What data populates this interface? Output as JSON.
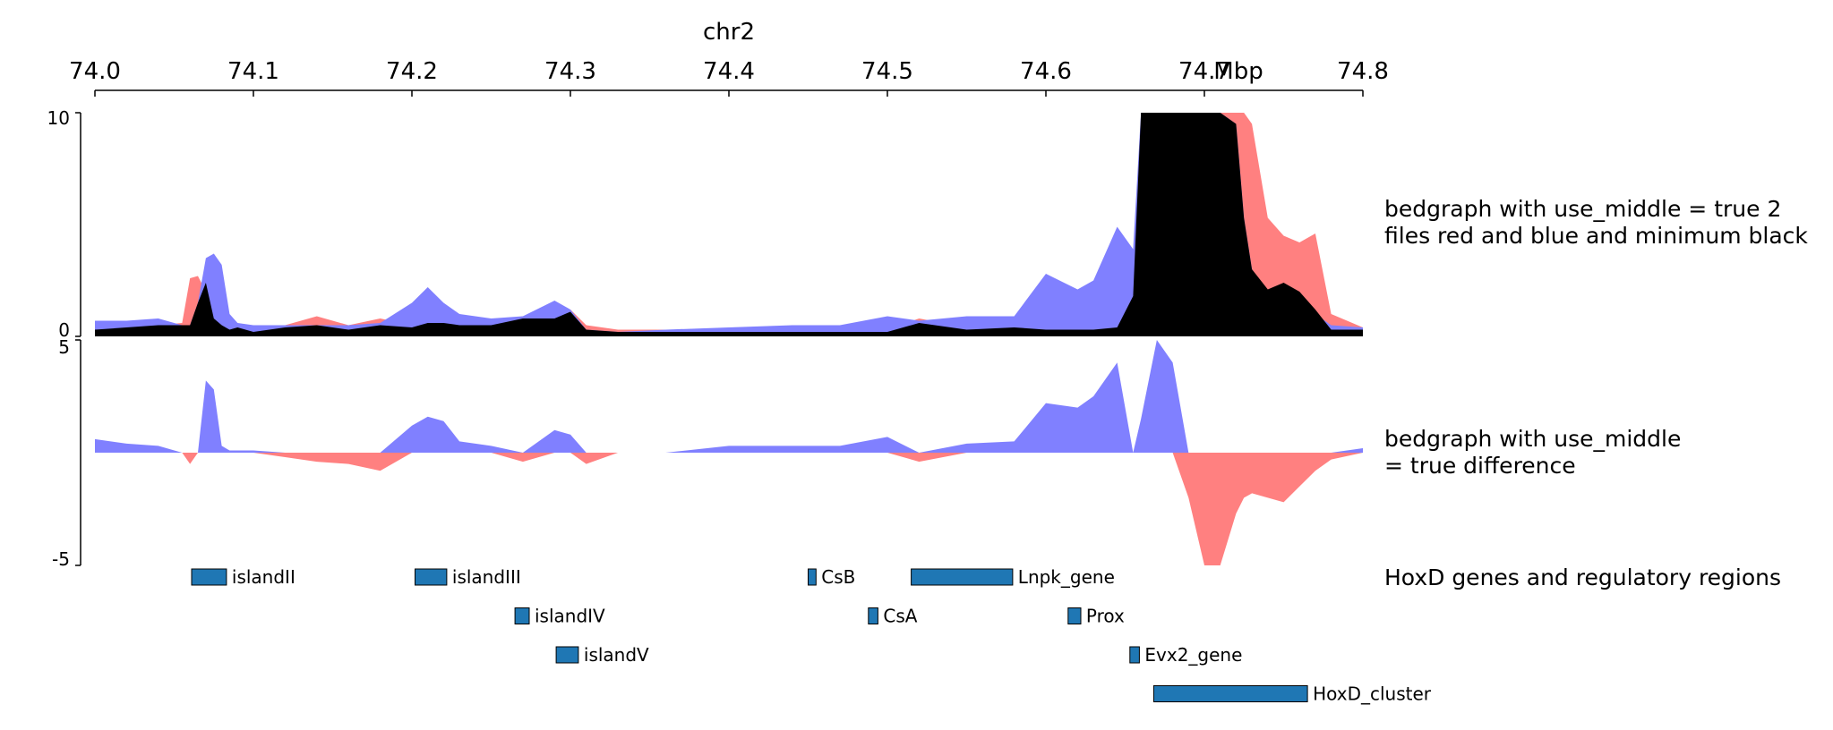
{
  "chart_data": [
    {
      "type": "area",
      "track": "x_axis",
      "title": "chr2",
      "ticks": [
        "74.0",
        "74.1",
        "74.2",
        "74.3",
        "74.4",
        "74.5",
        "74.6",
        "74.7",
        "74.8"
      ],
      "unit": "Mbp",
      "xlim": [
        74.0,
        74.8
      ]
    },
    {
      "type": "area",
      "track": "bedgraph_two_files",
      "label": "bedgraph with use_middle = true 2 files red and blue and minimum black",
      "ylim": [
        0,
        10
      ],
      "ytick_labels": [
        "10",
        "0"
      ],
      "colors": {
        "file1": "#ff8080",
        "file2": "#8080ff",
        "minimum": "#000000"
      },
      "x": [
        74.0,
        74.02,
        74.04,
        74.055,
        74.06,
        74.065,
        74.07,
        74.075,
        74.08,
        74.085,
        74.09,
        74.1,
        74.12,
        74.14,
        74.16,
        74.18,
        74.2,
        74.21,
        74.22,
        74.23,
        74.25,
        74.27,
        74.29,
        74.3,
        74.31,
        74.33,
        74.36,
        74.4,
        74.44,
        74.47,
        74.5,
        74.52,
        74.55,
        74.58,
        74.6,
        74.62,
        74.63,
        74.645,
        74.655,
        74.66,
        74.67,
        74.68,
        74.69,
        74.7,
        74.71,
        74.72,
        74.725,
        74.73,
        74.74,
        74.75,
        74.76,
        74.77,
        74.78,
        74.8
      ],
      "series": [
        {
          "name": "file1",
          "values": [
            0.4,
            0.4,
            0.5,
            0.6,
            2.6,
            2.7,
            2.0,
            0.8,
            0.5,
            0.4,
            0.5,
            0.3,
            0.5,
            0.9,
            0.5,
            0.8,
            0.5,
            0.7,
            0.9,
            0.6,
            0.6,
            0.9,
            0.9,
            1.2,
            0.5,
            0.3,
            0.3,
            0.3,
            0.2,
            0.3,
            0.3,
            0.8,
            0.4,
            0.5,
            0.3,
            0.3,
            0.3,
            0.4,
            1.8,
            5.5,
            10.0,
            10.0,
            10.0,
            10.0,
            10.0,
            10.0,
            10.0,
            9.5,
            5.3,
            4.5,
            4.2,
            4.6,
            1.0,
            0.4
          ]
        },
        {
          "name": "file2",
          "values": [
            0.7,
            0.7,
            0.8,
            0.5,
            0.5,
            1.5,
            3.5,
            3.7,
            3.2,
            1.0,
            0.6,
            0.5,
            0.5,
            0.5,
            0.5,
            0.6,
            1.5,
            2.2,
            1.5,
            1.0,
            0.8,
            0.9,
            1.6,
            1.2,
            0.3,
            0.2,
            0.3,
            0.4,
            0.5,
            0.5,
            0.9,
            0.7,
            0.9,
            0.9,
            2.8,
            2.1,
            2.5,
            4.9,
            3.9,
            10.0,
            10.0,
            10.0,
            10.0,
            10.0,
            10.0,
            9.5,
            5.3,
            3.0,
            2.0,
            1.5,
            1.2,
            1.0,
            0.5,
            0.4
          ]
        },
        {
          "name": "minimum",
          "values": [
            0.3,
            0.4,
            0.5,
            0.5,
            0.5,
            1.5,
            2.4,
            0.8,
            0.5,
            0.3,
            0.4,
            0.2,
            0.4,
            0.5,
            0.3,
            0.5,
            0.4,
            0.6,
            0.6,
            0.5,
            0.5,
            0.8,
            0.8,
            1.1,
            0.3,
            0.2,
            0.2,
            0.2,
            0.2,
            0.2,
            0.2,
            0.6,
            0.3,
            0.4,
            0.3,
            0.3,
            0.3,
            0.4,
            1.8,
            10.0,
            10.0,
            10.0,
            10.0,
            10.0,
            10.0,
            9.5,
            5.3,
            3.0,
            2.1,
            2.4,
            2.0,
            1.2,
            0.3,
            0.3
          ]
        }
      ]
    },
    {
      "type": "area",
      "track": "bedgraph_difference",
      "label": "bedgraph with use_middle = true difference",
      "ylim": [
        -5,
        5
      ],
      "ytick_labels": [
        "5",
        "-5"
      ],
      "colors": {
        "positive": "#8080ff",
        "negative": "#ff8080"
      },
      "x": [
        74.0,
        74.02,
        74.04,
        74.055,
        74.06,
        74.065,
        74.07,
        74.075,
        74.08,
        74.085,
        74.09,
        74.1,
        74.12,
        74.14,
        74.16,
        74.18,
        74.2,
        74.21,
        74.22,
        74.23,
        74.25,
        74.27,
        74.29,
        74.3,
        74.31,
        74.33,
        74.36,
        74.4,
        74.44,
        74.47,
        74.5,
        74.52,
        74.55,
        74.58,
        74.6,
        74.62,
        74.63,
        74.645,
        74.655,
        74.66,
        74.67,
        74.68,
        74.69,
        74.7,
        74.71,
        74.72,
        74.725,
        74.73,
        74.74,
        74.75,
        74.76,
        74.77,
        74.78,
        74.8
      ],
      "values": [
        0.6,
        0.4,
        0.3,
        0.0,
        -0.5,
        0.0,
        3.2,
        2.8,
        0.3,
        0.1,
        0.1,
        0.1,
        -0.2,
        -0.4,
        -0.5,
        -0.8,
        1.2,
        1.6,
        1.4,
        0.5,
        0.3,
        -0.4,
        1.0,
        0.8,
        -0.5,
        0.0,
        0.0,
        0.3,
        0.3,
        0.3,
        0.7,
        -0.4,
        0.4,
        0.5,
        2.2,
        2.0,
        2.5,
        4.0,
        0.0,
        1.5,
        5.0,
        4.0,
        -2.0,
        -5.0,
        -5.0,
        -2.7,
        -2.0,
        -1.8,
        -2.0,
        -2.2,
        -1.5,
        -0.8,
        -0.3,
        0.2
      ]
    },
    {
      "type": "table",
      "track": "genes",
      "label": "HoxD genes and regulatory regions",
      "feature_color": "#1f77b4",
      "features": [
        {
          "name": "islandII",
          "start": 74.061,
          "end": 74.083,
          "row": 0
        },
        {
          "name": "islandIII",
          "start": 74.202,
          "end": 74.222,
          "row": 0
        },
        {
          "name": "CsB",
          "start": 74.45,
          "end": 74.455,
          "row": 0
        },
        {
          "name": "Lnpk_gene",
          "start": 74.515,
          "end": 74.579,
          "row": 0
        },
        {
          "name": "islandIV",
          "start": 74.265,
          "end": 74.274,
          "row": 1
        },
        {
          "name": "CsA",
          "start": 74.488,
          "end": 74.494,
          "row": 1
        },
        {
          "name": "Prox",
          "start": 74.614,
          "end": 74.622,
          "row": 1
        },
        {
          "name": "islandV",
          "start": 74.291,
          "end": 74.305,
          "row": 2
        },
        {
          "name": "Evx2_gene",
          "start": 74.653,
          "end": 74.659,
          "row": 2
        },
        {
          "name": "HoxD_cluster",
          "start": 74.668,
          "end": 74.765,
          "row": 3
        }
      ]
    }
  ]
}
